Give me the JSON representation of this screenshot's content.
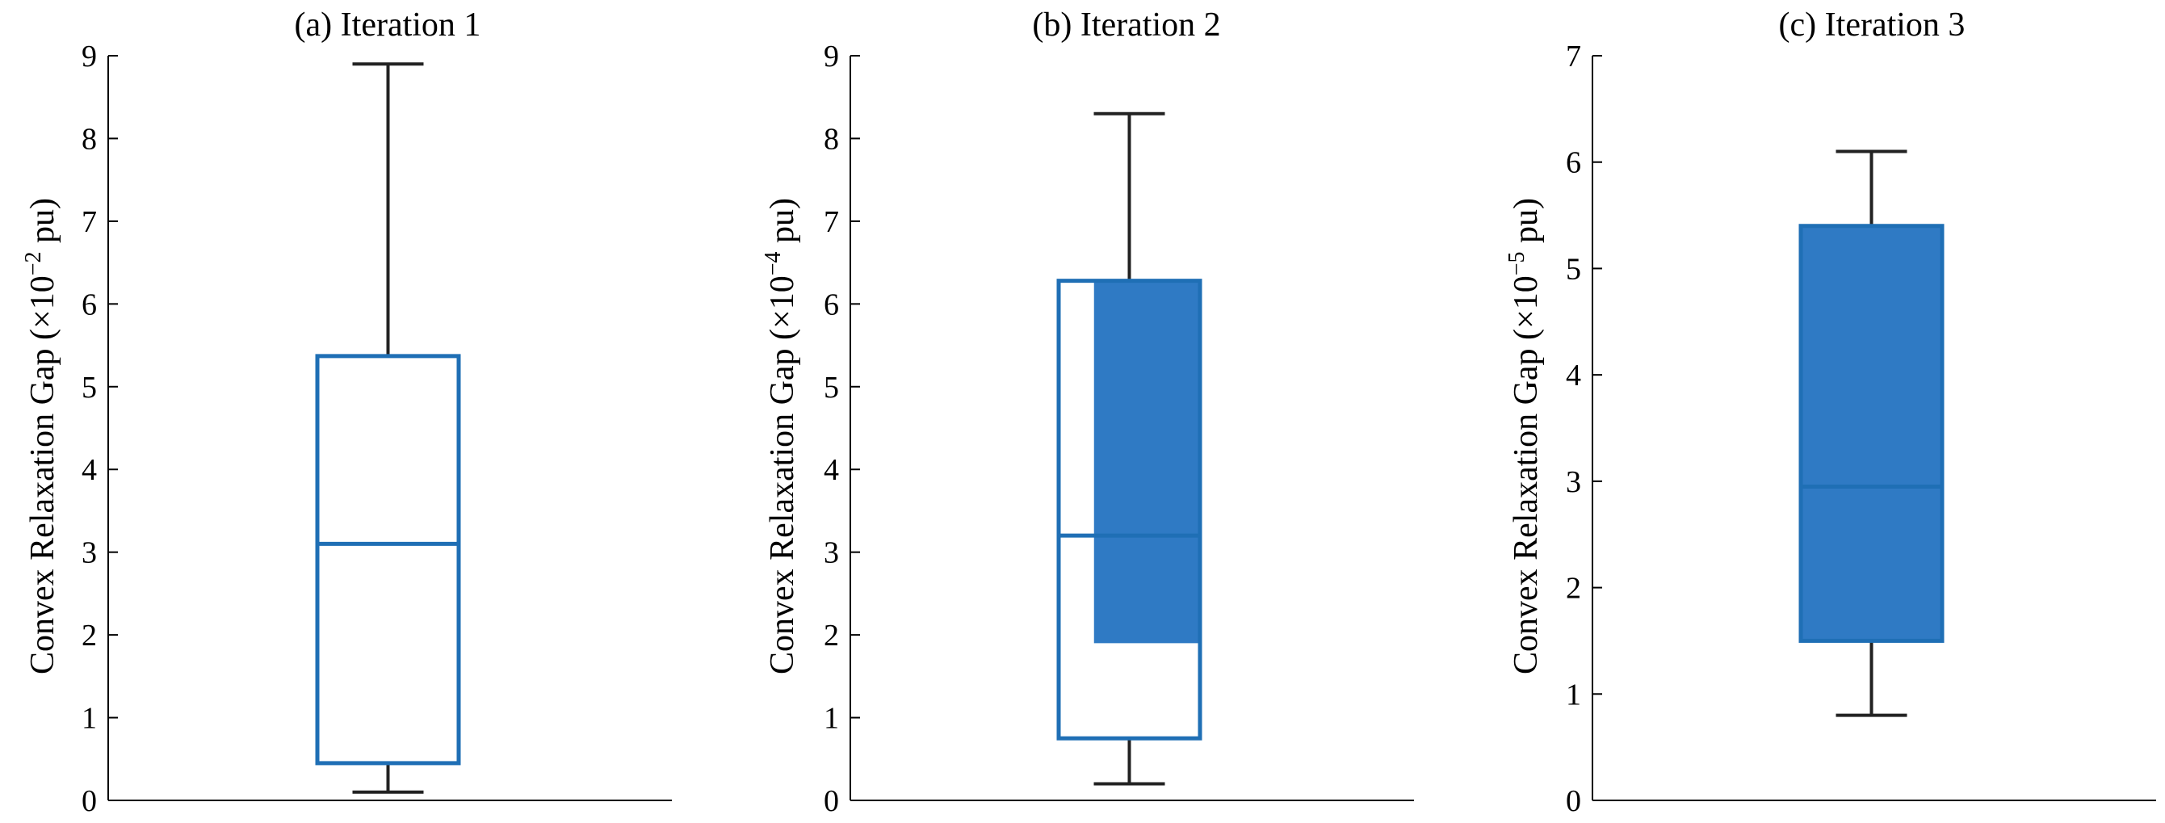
{
  "chart_data": [
    {
      "type": "box",
      "title": "(a) Iteration 1",
      "ylabel": {
        "prefix": "Convex Relaxation Gap (×10",
        "exponent": "−2",
        "suffix": " pu)"
      },
      "ylim": [
        0,
        9
      ],
      "yticks": [
        0,
        1,
        2,
        3,
        4,
        5,
        6,
        7,
        8,
        9
      ],
      "box": {
        "whisker_low": 0.1,
        "q1": 0.45,
        "median": 3.1,
        "q3": 5.37,
        "whisker_high": 8.9
      },
      "shade": null,
      "grid": false
    },
    {
      "type": "box",
      "title": "(b) Iteration 2",
      "ylabel": {
        "prefix": "Convex Relaxation Gap (×10",
        "exponent": "−4",
        "suffix": " pu)"
      },
      "ylim": [
        0,
        9
      ],
      "yticks": [
        0,
        1,
        2,
        3,
        4,
        5,
        6,
        7,
        8,
        9
      ],
      "box": {
        "whisker_low": 0.2,
        "q1": 0.75,
        "median": 3.2,
        "q3": 6.28,
        "whisker_high": 8.3
      },
      "shade": {
        "low": 1.9,
        "high": 6.28,
        "from_fraction": 0.25
      },
      "grid": false
    },
    {
      "type": "box",
      "title": "(c) Iteration 3",
      "ylabel": {
        "prefix": "Convex Relaxation Gap (×10",
        "exponent": "−5",
        "suffix": " pu)"
      },
      "ylim": [
        0,
        7
      ],
      "yticks": [
        0,
        1,
        2,
        3,
        4,
        5,
        6,
        7
      ],
      "box": {
        "whisker_low": 0.8,
        "q1": 1.5,
        "median": 2.95,
        "q3": 5.4,
        "whisker_high": 6.1
      },
      "shade": {
        "low": 1.5,
        "high": 5.4,
        "from_fraction": 0
      },
      "grid": false
    }
  ],
  "colors": {
    "box": "#1f6fb5",
    "shade": "#2f7ac4",
    "whisker": "#222222",
    "axis": "#000000"
  }
}
